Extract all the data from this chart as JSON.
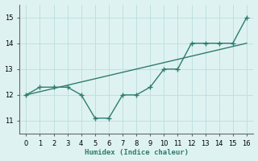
{
  "x": [
    0,
    1,
    2,
    3,
    4,
    5,
    6,
    7,
    8,
    9,
    10,
    11,
    12,
    13,
    14,
    15,
    16
  ],
  "y_jagged": [
    12.0,
    12.3,
    12.3,
    12.3,
    12.0,
    11.1,
    11.1,
    12.0,
    12.0,
    12.3,
    13.0,
    13.0,
    14.0,
    14.0,
    14.0,
    14.0,
    15.0
  ],
  "y_trend_x": [
    0,
    16
  ],
  "y_trend_y": [
    12.0,
    14.0
  ],
  "line_color": "#2e7d6e",
  "bg_color": "#dff2f2",
  "grid_color": "#bde0e0",
  "xlabel": "Humidex (Indice chaleur)",
  "ylim": [
    10.5,
    15.5
  ],
  "xlim": [
    -0.5,
    16.5
  ],
  "yticks": [
    11,
    12,
    13,
    14,
    15
  ],
  "xticks": [
    0,
    1,
    2,
    3,
    4,
    5,
    6,
    7,
    8,
    9,
    10,
    11,
    12,
    13,
    14,
    15,
    16
  ],
  "marker_size": 2.5,
  "linewidth": 1.0
}
